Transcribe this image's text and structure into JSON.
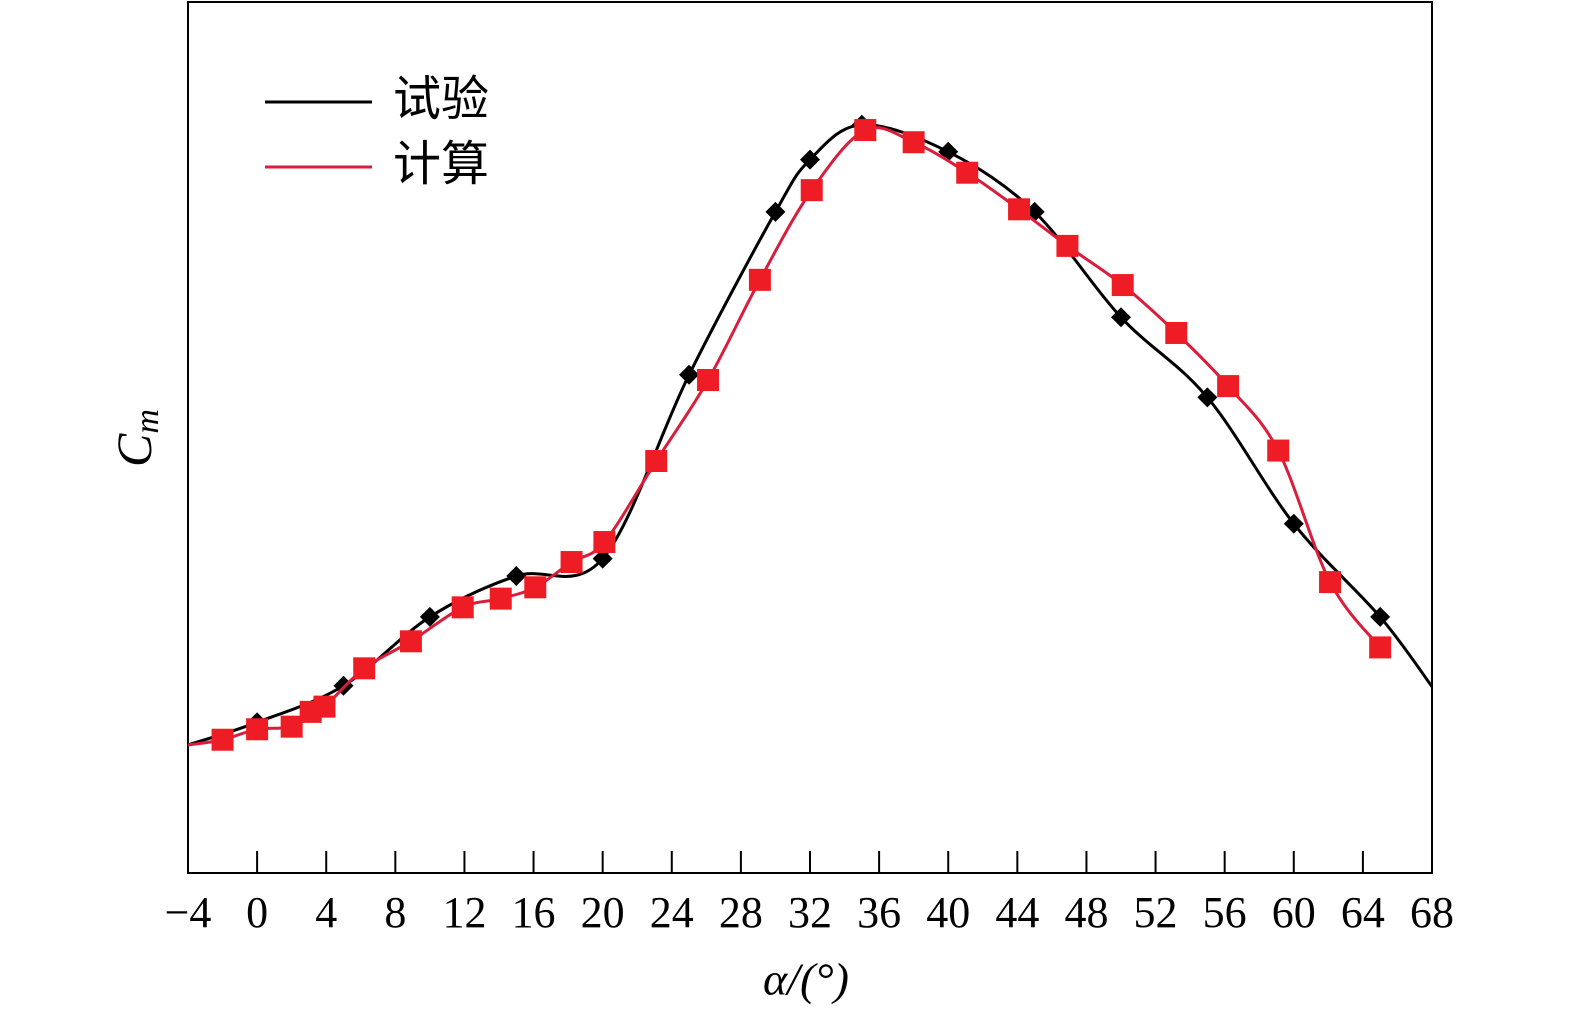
{
  "chart_data": {
    "type": "line",
    "xlabel": "α/(°)",
    "ylabel": {
      "main": "C",
      "sub": "m"
    },
    "xlim": [
      -4,
      68
    ],
    "xticks": [
      {
        "value": -4,
        "label": "−4"
      },
      0,
      4,
      8,
      12,
      16,
      20,
      24,
      28,
      32,
      36,
      40,
      44,
      48,
      52,
      56,
      60,
      64,
      68
    ],
    "ylim": [
      0,
      100
    ],
    "legend": "upper left",
    "series": [
      {
        "name": "试验",
        "color": "#000000",
        "marker": "diamond",
        "x": [
          -4,
          0,
          5,
          10,
          15,
          20,
          25,
          30,
          32,
          35,
          40,
          45,
          50,
          55,
          60,
          65,
          68
        ],
        "values": [
          14.7,
          17.3,
          21.5,
          29.4,
          34.1,
          36.1,
          57.2,
          75.9,
          81.9,
          85.9,
          82.8,
          75.9,
          63.8,
          54.6,
          40.1,
          29.4,
          21.4
        ]
      },
      {
        "name": "计算",
        "color": "#d81e3c",
        "marker": "square",
        "marker_color": "#ee1c25",
        "x": [
          -4,
          -2,
          0,
          2,
          3.1,
          3.9,
          6.2,
          8.9,
          11.9,
          14.1,
          16.1,
          18.2,
          20.1,
          23.1,
          26.1,
          29.1,
          32.1,
          35.2,
          38,
          41.1,
          44.1,
          46.9,
          50.1,
          53.2,
          56.2,
          59.1,
          62.1,
          65
        ],
        "values": [
          14.7,
          15.3,
          16.5,
          16.8,
          18.5,
          19.1,
          23.5,
          26.6,
          30.5,
          31.5,
          32.8,
          35.7,
          38,
          47.3,
          56.6,
          68.1,
          78.4,
          85.3,
          83.9,
          80.4,
          76.2,
          72,
          67.5,
          62,
          55.9,
          48.5,
          33.4,
          25.9
        ]
      }
    ]
  }
}
